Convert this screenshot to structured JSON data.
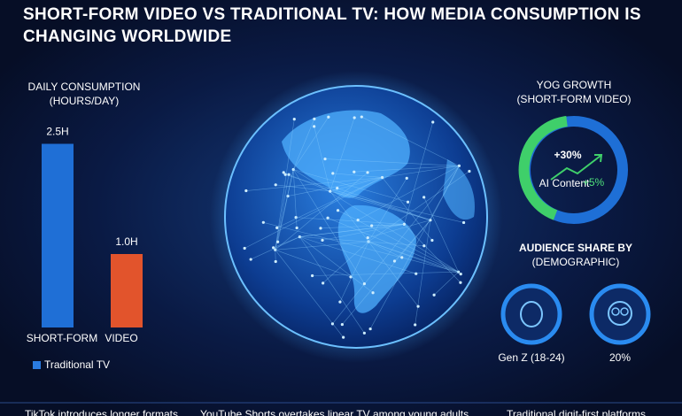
{
  "header": {
    "title": "SHORT-FORM VIDEO VS TRADITIONAL TV: HOW MEDIA CONSUMPTION IS CHANGING WORLDWIDE"
  },
  "chart_data": {
    "type": "bar",
    "title": "DAILY CONSUMPTION",
    "subtitle": "(HOURS/DAY)",
    "categories": [
      "SHORT-FORM",
      "VIDEO"
    ],
    "values": [
      2.5,
      1.0
    ],
    "value_labels": [
      "2.5H",
      "1.0H"
    ],
    "colors": [
      "#1f6fd6",
      "#e2542c"
    ],
    "legend": {
      "label": "Traditional TV",
      "color": "#2a7be0"
    }
  },
  "growth": {
    "title": "YOG GROWTH",
    "subtitle": "(SHORT-FORM VIDEO)",
    "value": "+30%",
    "note": "AI Content",
    "note_value": "+5%"
  },
  "audience": {
    "title": "AUDIENCE SHARE BY",
    "subtitle": "(DEMOGRAPHIC)",
    "items": [
      "Gen Z (18-24)",
      "20%"
    ]
  },
  "ticker": [
    "TikTok introduces longer formats",
    "YouTube Shorts overtakes linear TV among young adults",
    "Traditional digit-first platforms"
  ]
}
